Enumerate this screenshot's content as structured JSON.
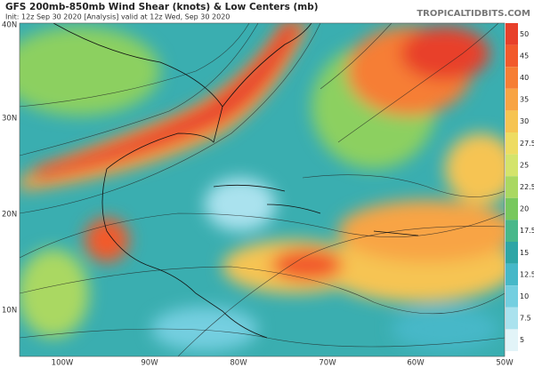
{
  "header": {
    "title": "GFS 200mb-850mb Wind Shear (knots) & Low Centers (mb)",
    "subtitle": "Init: 12z Sep 30 2020   [Analysis]   valid at 12z Wed, Sep 30 2020",
    "watermark": "TROPICALTIDBITS.COM"
  },
  "map": {
    "lat_labels": [
      "40N",
      "30N",
      "20N",
      "10N"
    ],
    "lon_labels": [
      "100W",
      "90W",
      "80W",
      "70W",
      "60W",
      "50W"
    ]
  },
  "colorbar": {
    "levels": [
      50,
      45,
      40,
      35,
      30,
      27.5,
      25,
      22.5,
      20,
      17.5,
      15,
      12.5,
      10,
      7.5,
      5
    ],
    "colors": [
      "#e8402a",
      "#f25a2c",
      "#f67e34",
      "#f8a444",
      "#f6c452",
      "#eedc62",
      "#d4e46c",
      "#aad862",
      "#78c85e",
      "#48b88a",
      "#2ea6a6",
      "#46b8c8",
      "#74cfe0",
      "#aae2ee",
      "#e2f4f8"
    ]
  }
}
